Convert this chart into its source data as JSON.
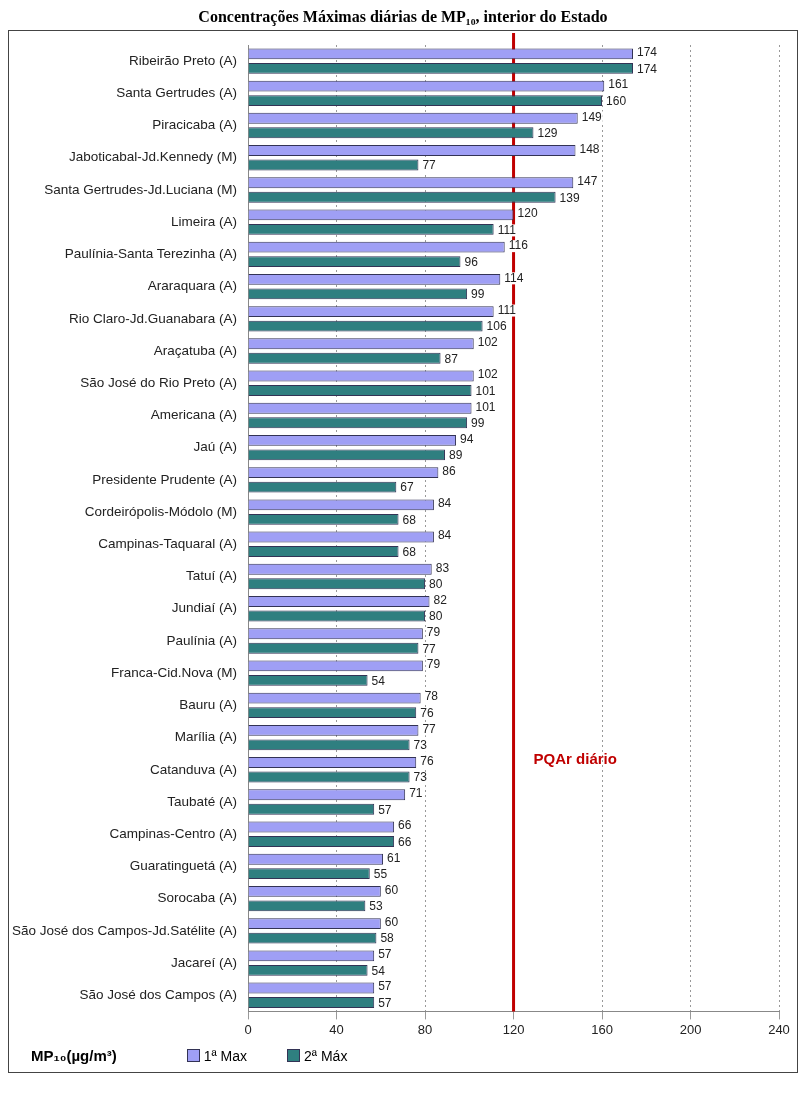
{
  "chart_data": {
    "type": "bar",
    "orientation": "horizontal",
    "title": "Concentrações Máximas diárias de MP₁₀, interior do Estado",
    "xlabel": "MP₁₀(µg/m³)",
    "categories": [
      "Ribeirão Preto (A)",
      "Santa Gertrudes (A)",
      "Piracicaba (A)",
      "Jaboticabal-Jd.Kennedy (M)",
      "Santa Gertrudes-Jd.Luciana (M)",
      "Limeira (A)",
      "Paulínia-Santa Terezinha (A)",
      "Araraquara (A)",
      "Rio Claro-Jd.Guanabara (A)",
      "Araçatuba (A)",
      "São José do Rio Preto (A)",
      "Americana (A)",
      "Jaú (A)",
      "Presidente Prudente (A)",
      "Cordeirópolis-Módolo (M)",
      "Campinas-Taquaral (A)",
      "Tatuí (A)",
      "Jundiaí (A)",
      "Paulínia (A)",
      "Franca-Cid.Nova (M)",
      "Bauru (A)",
      "Marília (A)",
      "Catanduva (A)",
      "Taubaté (A)",
      "Campinas-Centro (A)",
      "Guaratinguetá (A)",
      "Sorocaba (A)",
      "São José dos Campos-Jd.Satélite (A)",
      "Jacareí (A)",
      "São José dos Campos (A)"
    ],
    "series": [
      {
        "name": "1ª Max",
        "color": "#9f9ff5",
        "values": [
          174,
          161,
          149,
          148,
          147,
          120,
          116,
          114,
          111,
          102,
          102,
          101,
          94,
          86,
          84,
          84,
          83,
          82,
          79,
          79,
          78,
          77,
          76,
          71,
          66,
          61,
          60,
          60,
          57,
          57
        ]
      },
      {
        "name": "2ª Máx",
        "color": "#2f7f80",
        "values": [
          174,
          160,
          129,
          77,
          139,
          111,
          96,
          99,
          106,
          87,
          101,
          99,
          89,
          67,
          68,
          68,
          80,
          80,
          77,
          54,
          76,
          73,
          73,
          57,
          66,
          55,
          53,
          58,
          54,
          57
        ]
      }
    ],
    "xlim": [
      0,
      240
    ],
    "xticks": [
      0,
      40,
      80,
      120,
      160,
      200,
      240
    ],
    "ref_lines": [
      {
        "axis": "x",
        "value": 120,
        "label": "PQAr diário",
        "color": "#c00000"
      }
    ],
    "grid": "x",
    "data_labels": true,
    "legend": "bottom"
  }
}
